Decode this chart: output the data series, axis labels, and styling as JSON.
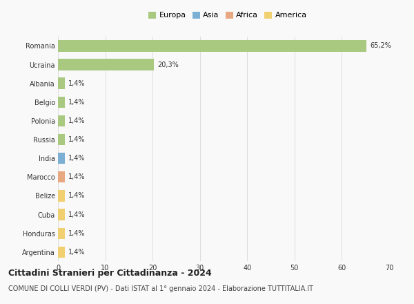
{
  "categories": [
    "Romania",
    "Ucraina",
    "Albania",
    "Belgio",
    "Polonia",
    "Russia",
    "India",
    "Marocco",
    "Belize",
    "Cuba",
    "Honduras",
    "Argentina"
  ],
  "values": [
    65.2,
    20.3,
    1.4,
    1.4,
    1.4,
    1.4,
    1.4,
    1.4,
    1.4,
    1.4,
    1.4,
    1.4
  ],
  "labels": [
    "65,2%",
    "20,3%",
    "1,4%",
    "1,4%",
    "1,4%",
    "1,4%",
    "1,4%",
    "1,4%",
    "1,4%",
    "1,4%",
    "1,4%",
    "1,4%"
  ],
  "continents": [
    "Europa",
    "Europa",
    "Europa",
    "Europa",
    "Europa",
    "Europa",
    "Asia",
    "Africa",
    "America",
    "America",
    "America",
    "America"
  ],
  "colors": {
    "Europa": "#a8c97f",
    "Asia": "#7bafd4",
    "Africa": "#e8a882",
    "America": "#f0d070"
  },
  "xlim": [
    0,
    70
  ],
  "xticks": [
    0,
    10,
    20,
    30,
    40,
    50,
    60,
    70
  ],
  "title": "Cittadini Stranieri per Cittadinanza - 2024",
  "subtitle": "COMUNE DI COLLI VERDI (PV) - Dati ISTAT al 1° gennaio 2024 - Elaborazione TUTTITALIA.IT",
  "background_color": "#f9f9f9",
  "grid_color": "#dddddd",
  "bar_height": 0.6,
  "title_fontsize": 9,
  "subtitle_fontsize": 7,
  "label_fontsize": 7,
  "tick_fontsize": 7,
  "legend_fontsize": 8
}
